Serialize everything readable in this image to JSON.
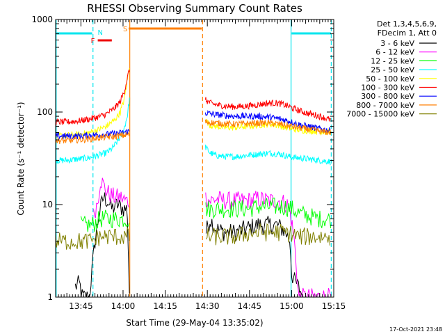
{
  "chart_data": {
    "type": "line",
    "title": "RHESSI Observing Summary Count Rates",
    "xlabel": "Start Time (29-May-04 13:35:02)",
    "ylabel": "Count Rate (s⁻¹ detector⁻¹)",
    "y_scale": "log",
    "ylim": [
      1,
      1000
    ],
    "xlim_minutes_of_day": [
      816,
      915
    ],
    "xticks": [
      {
        "label": "13:45",
        "minute": 825
      },
      {
        "label": "14:00",
        "minute": 840
      },
      {
        "label": "14:15",
        "minute": 855
      },
      {
        "label": "14:30",
        "minute": 870
      },
      {
        "label": "14:45",
        "minute": 885
      },
      {
        "label": "15:00",
        "minute": 900
      },
      {
        "label": "15:15",
        "minute": 915
      }
    ],
    "yticks": [
      {
        "label": "1",
        "value": 1
      },
      {
        "label": "10",
        "value": 10
      },
      {
        "label": "100",
        "value": 100
      },
      {
        "label": "1000",
        "value": 1000
      }
    ],
    "legend_header": [
      "Det 1,3,4,5,6,9,",
      "FDecim 1, Att 0"
    ],
    "legend_placement": "right",
    "flags": [
      {
        "label": "N",
        "color": "#00e5ee",
        "start": 816,
        "end": 829
      },
      {
        "label": "N",
        "color": "#00e5ee",
        "start": 900,
        "end": 914
      },
      {
        "label": "F",
        "color": "#ee0000",
        "start": 831,
        "end": 836
      },
      {
        "label": "S",
        "color": "#ff7f00",
        "start": 842,
        "end": 868
      }
    ],
    "vlines": [
      {
        "minute": 816.2,
        "color": "#00e5ee",
        "style": "solid"
      },
      {
        "minute": 829.3,
        "color": "#00e5ee",
        "style": "dashed"
      },
      {
        "minute": 899.8,
        "color": "#00e5ee",
        "style": "solid"
      },
      {
        "minute": 914.1,
        "color": "#00e5ee",
        "style": "dashed"
      },
      {
        "minute": 842.4,
        "color": "#ff7f00",
        "style": "solid"
      },
      {
        "minute": 868.3,
        "color": "#ff7f00",
        "style": "dashed"
      }
    ],
    "series": [
      {
        "name": "3 - 6 keV",
        "color": "#000000",
        "points": [
          [
            823,
            1.3
          ],
          [
            824.5,
            1.4
          ],
          [
            825.5,
            1
          ],
          [
            828,
            1
          ],
          [
            830,
            4
          ],
          [
            831.5,
            8
          ],
          [
            833,
            12
          ],
          [
            834.5,
            11
          ],
          [
            836,
            9
          ],
          [
            838,
            10
          ],
          [
            840,
            9
          ],
          [
            841.5,
            9
          ],
          [
            842.3,
            1
          ],
          [
            869,
            1
          ],
          [
            869.5,
            5
          ],
          [
            871,
            7
          ],
          [
            873,
            5.5
          ],
          [
            876,
            5
          ],
          [
            880,
            5
          ],
          [
            884,
            5.5
          ],
          [
            888,
            6
          ],
          [
            892,
            6
          ],
          [
            895,
            6
          ],
          [
            898,
            5
          ],
          [
            899.5,
            4
          ],
          [
            900,
            1.8
          ],
          [
            901,
            1.5
          ],
          [
            903,
            1.2
          ],
          [
            904,
            1
          ]
        ]
      },
      {
        "name": "6 - 12 keV",
        "color": "#ff00ff",
        "points": [
          [
            829.5,
            7.5
          ],
          [
            831,
            11
          ],
          [
            832,
            19
          ],
          [
            833.5,
            15
          ],
          [
            835,
            13
          ],
          [
            837,
            12
          ],
          [
            839,
            12
          ],
          [
            841,
            11
          ],
          [
            842.3,
            11
          ],
          [
            869.3,
            12
          ],
          [
            871,
            11
          ],
          [
            873,
            11.5
          ],
          [
            876,
            11
          ],
          [
            880,
            11
          ],
          [
            884,
            11
          ],
          [
            888,
            11.5
          ],
          [
            892,
            11
          ],
          [
            896,
            11
          ],
          [
            898.5,
            10
          ],
          [
            899.5,
            8
          ],
          [
            900,
            6.5
          ],
          [
            901,
            4
          ],
          [
            902.5,
            1
          ],
          [
            914,
            1
          ]
        ]
      },
      {
        "name": "12 - 25 keV",
        "color": "#00ff00",
        "points": [
          [
            825,
            6
          ],
          [
            829,
            6
          ],
          [
            832,
            7
          ],
          [
            835,
            7
          ],
          [
            838,
            7
          ],
          [
            841,
            7
          ],
          [
            842.3,
            7
          ],
          [
            869.3,
            9
          ],
          [
            873,
            9
          ],
          [
            877,
            9
          ],
          [
            881,
            9
          ],
          [
            885,
            9
          ],
          [
            889,
            9.5
          ],
          [
            893,
            9.5
          ],
          [
            897,
            9.5
          ],
          [
            900,
            9
          ],
          [
            903,
            8
          ],
          [
            906,
            7.5
          ],
          [
            910,
            7
          ],
          [
            914,
            7
          ]
        ]
      },
      {
        "name": "25 - 50 keV",
        "color": "#00ffff",
        "points": [
          [
            816,
            30
          ],
          [
            820,
            30
          ],
          [
            824,
            31
          ],
          [
            828,
            32
          ],
          [
            831,
            34
          ],
          [
            834,
            36
          ],
          [
            836,
            40
          ],
          [
            838,
            48
          ],
          [
            840,
            60
          ],
          [
            841.5,
            90
          ],
          [
            842.3,
            140
          ],
          [
            869.3,
            42
          ],
          [
            871,
            36
          ],
          [
            873,
            34
          ],
          [
            876,
            33
          ],
          [
            880,
            33
          ],
          [
            884,
            34
          ],
          [
            888,
            35
          ],
          [
            892,
            36
          ],
          [
            896,
            35
          ],
          [
            899,
            33
          ],
          [
            902,
            32
          ],
          [
            906,
            31
          ],
          [
            910,
            30
          ],
          [
            914,
            29
          ]
        ]
      },
      {
        "name": "50 - 100 keV",
        "color": "#ffff00",
        "points": [
          [
            816,
            55
          ],
          [
            820,
            56
          ],
          [
            824,
            57
          ],
          [
            828,
            60
          ],
          [
            831,
            64
          ],
          [
            834,
            70
          ],
          [
            837,
            82
          ],
          [
            839,
            100
          ],
          [
            840.5,
            140
          ],
          [
            841.5,
            220
          ],
          [
            842.3,
            320
          ],
          [
            869.3,
            82
          ],
          [
            871,
            72
          ],
          [
            873,
            70
          ],
          [
            876,
            68
          ],
          [
            880,
            68
          ],
          [
            884,
            70
          ],
          [
            888,
            72
          ],
          [
            892,
            74
          ],
          [
            895,
            72
          ],
          [
            898,
            68
          ],
          [
            901,
            65
          ],
          [
            905,
            63
          ],
          [
            910,
            62
          ],
          [
            914,
            60
          ]
        ]
      },
      {
        "name": "100 - 300 keV",
        "color": "#ff0000",
        "points": [
          [
            816,
            78
          ],
          [
            820,
            78
          ],
          [
            824,
            80
          ],
          [
            828,
            84
          ],
          [
            831,
            88
          ],
          [
            834,
            95
          ],
          [
            837,
            110
          ],
          [
            839,
            130
          ],
          [
            840.5,
            170
          ],
          [
            841.5,
            230
          ],
          [
            842.3,
            290
          ],
          [
            869.3,
            135
          ],
          [
            871,
            125
          ],
          [
            873,
            120
          ],
          [
            876,
            116
          ],
          [
            880,
            114
          ],
          [
            884,
            116
          ],
          [
            888,
            120
          ],
          [
            892,
            125
          ],
          [
            895,
            125
          ],
          [
            898,
            118
          ],
          [
            901,
            108
          ],
          [
            905,
            98
          ],
          [
            909,
            92
          ],
          [
            912,
            86
          ],
          [
            914,
            82
          ]
        ]
      },
      {
        "name": "300 - 800 keV",
        "color": "#0000ff",
        "points": [
          [
            816,
            55
          ],
          [
            820,
            55
          ],
          [
            824,
            55
          ],
          [
            828,
            56
          ],
          [
            832,
            57
          ],
          [
            836,
            58
          ],
          [
            840,
            60
          ],
          [
            842.3,
            62
          ],
          [
            869.3,
            98
          ],
          [
            871,
            96
          ],
          [
            873,
            94
          ],
          [
            876,
            92
          ],
          [
            880,
            90
          ],
          [
            884,
            90
          ],
          [
            888,
            90
          ],
          [
            892,
            88
          ],
          [
            896,
            84
          ],
          [
            899,
            80
          ],
          [
            902,
            74
          ],
          [
            906,
            70
          ],
          [
            910,
            66
          ],
          [
            914,
            63
          ]
        ]
      },
      {
        "name": "800 - 7000 keV",
        "color": "#ff7f00",
        "points": [
          [
            816,
            49
          ],
          [
            820,
            49
          ],
          [
            824,
            50
          ],
          [
            828,
            51
          ],
          [
            832,
            53
          ],
          [
            836,
            54
          ],
          [
            840,
            56
          ],
          [
            842.3,
            57
          ],
          [
            869.3,
            78
          ],
          [
            871,
            77
          ],
          [
            873,
            76
          ],
          [
            876,
            75
          ],
          [
            880,
            74
          ],
          [
            884,
            75
          ],
          [
            888,
            76
          ],
          [
            892,
            76
          ],
          [
            896,
            74
          ],
          [
            899,
            71
          ],
          [
            902,
            68
          ],
          [
            906,
            65
          ],
          [
            910,
            62
          ],
          [
            914,
            60
          ]
        ]
      },
      {
        "name": "7000 - 15000 keV",
        "color": "#808000",
        "points": [
          [
            816,
            4
          ],
          [
            820,
            4
          ],
          [
            824,
            4
          ],
          [
            828,
            4
          ],
          [
            832,
            4.5
          ],
          [
            836,
            4.5
          ],
          [
            840,
            4.5
          ],
          [
            842.3,
            4.5
          ],
          [
            869.3,
            4.5
          ],
          [
            873,
            4.5
          ],
          [
            877,
            4.5
          ],
          [
            881,
            4.5
          ],
          [
            885,
            5
          ],
          [
            889,
            5
          ],
          [
            893,
            5
          ],
          [
            897,
            5
          ],
          [
            900,
            4.8
          ],
          [
            903,
            4.5
          ],
          [
            906,
            4.5
          ],
          [
            910,
            4.5
          ],
          [
            914,
            4.5
          ]
        ]
      }
    ]
  },
  "timestamp": "17-Oct-2021 23:48"
}
